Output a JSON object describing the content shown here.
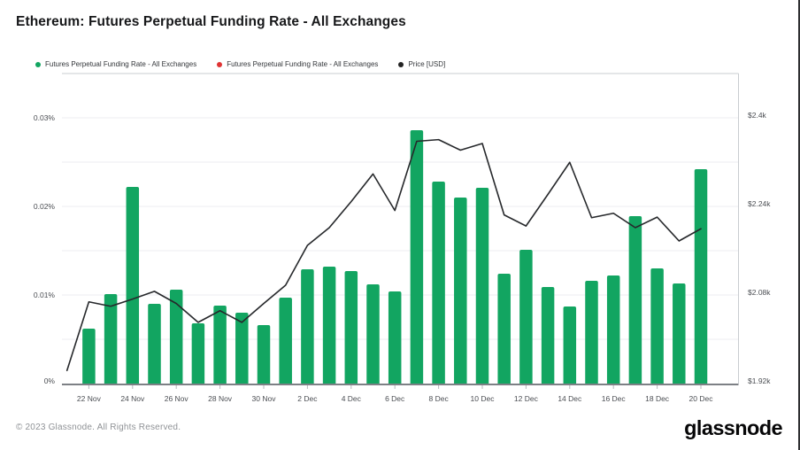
{
  "page": {
    "title": "Ethereum: Futures Perpetual Funding Rate - All Exchanges",
    "footer_copyright": "© 2023 Glassnode. All Rights Reserved.",
    "brand_logo": "glassnode"
  },
  "colors": {
    "bar_green": "#12a561",
    "legend_red": "#e03434",
    "price_line": "#26282b",
    "gridline": "#edeef2",
    "axis_line": "#7d8085",
    "tick_mark": "#b6b9bd",
    "axis_text": "#4b4e53",
    "plot_border": "#c9ccd0",
    "background": "#ffffff"
  },
  "legend": {
    "items": [
      {
        "label": "Futures Perpetual Funding Rate - All Exchanges",
        "color": "#12a561"
      },
      {
        "label": "Futures Perpetual Funding Rate - All Exchanges",
        "color": "#e03434"
      },
      {
        "label": "Price [USD]",
        "color": "#232323"
      }
    ]
  },
  "chart_data": {
    "type": "bar",
    "title": "Ethereum: Futures Perpetual Funding Rate - All Exchanges",
    "x": [
      "21 Nov",
      "22 Nov",
      "23 Nov",
      "24 Nov",
      "25 Nov",
      "26 Nov",
      "27 Nov",
      "28 Nov",
      "29 Nov",
      "30 Nov",
      "1 Dec",
      "2 Dec",
      "3 Dec",
      "4 Dec",
      "5 Dec",
      "6 Dec",
      "7 Dec",
      "8 Dec",
      "9 Dec",
      "10 Dec",
      "11 Dec",
      "12 Dec",
      "13 Dec",
      "14 Dec",
      "15 Dec",
      "16 Dec",
      "17 Dec",
      "18 Dec",
      "19 Dec",
      "20 Dec"
    ],
    "x_tick_labels": [
      "22 Nov",
      "24 Nov",
      "26 Nov",
      "28 Nov",
      "30 Nov",
      "2 Dec",
      "4 Dec",
      "6 Dec",
      "8 Dec",
      "10 Dec",
      "12 Dec",
      "14 Dec",
      "16 Dec",
      "18 Dec",
      "20 Dec"
    ],
    "series": [
      {
        "name": "Futures Perpetual Funding Rate - All Exchanges",
        "type": "bar",
        "axis": "left",
        "unit": "%",
        "color": "#12a561",
        "values": [
          null,
          0.0062,
          0.0101,
          0.0222,
          0.009,
          0.0106,
          0.0068,
          0.0088,
          0.008,
          0.0066,
          0.0097,
          0.0129,
          0.0132,
          0.0127,
          0.0112,
          0.0104,
          0.0286,
          0.0228,
          0.021,
          0.0221,
          0.0124,
          0.0151,
          0.0109,
          0.0087,
          0.0116,
          0.0122,
          0.0189,
          0.013,
          0.0113,
          0.0242
        ]
      },
      {
        "name": "Price [USD]",
        "type": "line",
        "axis": "right",
        "unit": "k$",
        "color": "#26282b",
        "values": [
          1.942,
          2.066,
          2.058,
          2.071,
          2.085,
          2.063,
          2.029,
          2.05,
          2.029,
          2.063,
          2.096,
          2.168,
          2.2,
          2.247,
          2.297,
          2.231,
          2.356,
          2.359,
          2.34,
          2.352,
          2.223,
          2.203,
          2.26,
          2.318,
          2.218,
          2.226,
          2.2,
          2.219,
          2.176,
          2.198
        ]
      }
    ],
    "left_axis": {
      "label_ticks": [
        "0%",
        "0.01%",
        "0.02%",
        "0.03%"
      ],
      "range_pct": [
        0,
        0.035
      ],
      "grid_step_pct": 0.005
    },
    "right_axis": {
      "label_ticks": [
        "$1.92k",
        "$2.08k",
        "$2.24k",
        "$2.4k"
      ],
      "range_usd_k": [
        1.92,
        2.48
      ]
    },
    "grid": "horizontal",
    "legend_position": "top-left"
  }
}
